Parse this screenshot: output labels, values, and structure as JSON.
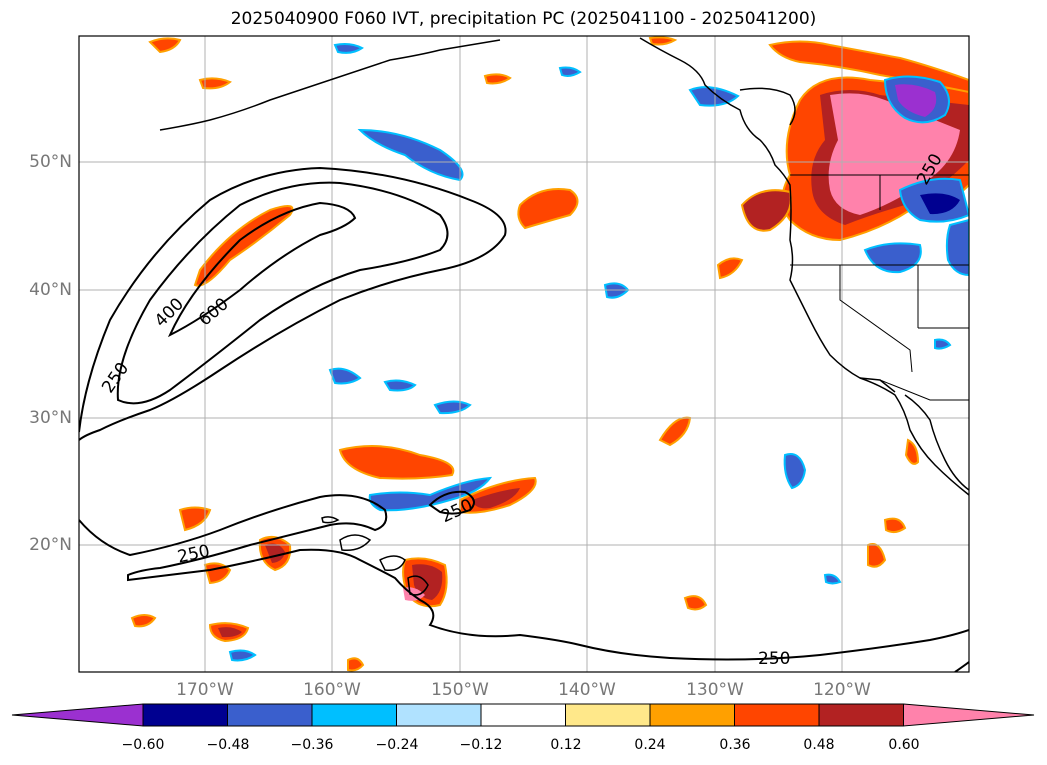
{
  "title": "2025040900 F060 IVT, precipitation PC (2025041100 - 2025041200)",
  "axes": {
    "lat_labels": [
      "50°N",
      "40°N",
      "30°N",
      "20°N"
    ],
    "lon_labels": [
      "170°W",
      "160°W",
      "150°W",
      "140°W",
      "130°W",
      "120°W"
    ],
    "grid": true
  },
  "colorbar": {
    "tick_labels": [
      "−0.60",
      "−0.48",
      "−0.36",
      "−0.24",
      "−0.12",
      "0.12",
      "0.24",
      "0.36",
      "0.48",
      "0.60"
    ],
    "colors": [
      "#9b30d0",
      "#000090",
      "#3a5fcd",
      "#00bfff",
      "#b0e2ff",
      "#ffffff",
      "#ffe88a",
      "#ffa000",
      "#ff4500",
      "#b22222",
      "#ff82ab"
    ],
    "extend": "both"
  },
  "contours": {
    "labels": [
      "250",
      "400",
      "600",
      "250",
      "250",
      "250",
      "250"
    ],
    "color": "#000000"
  },
  "colors": {
    "coastline": "#000000",
    "grid": "#b0b0b0",
    "tick_text": "#777777"
  }
}
